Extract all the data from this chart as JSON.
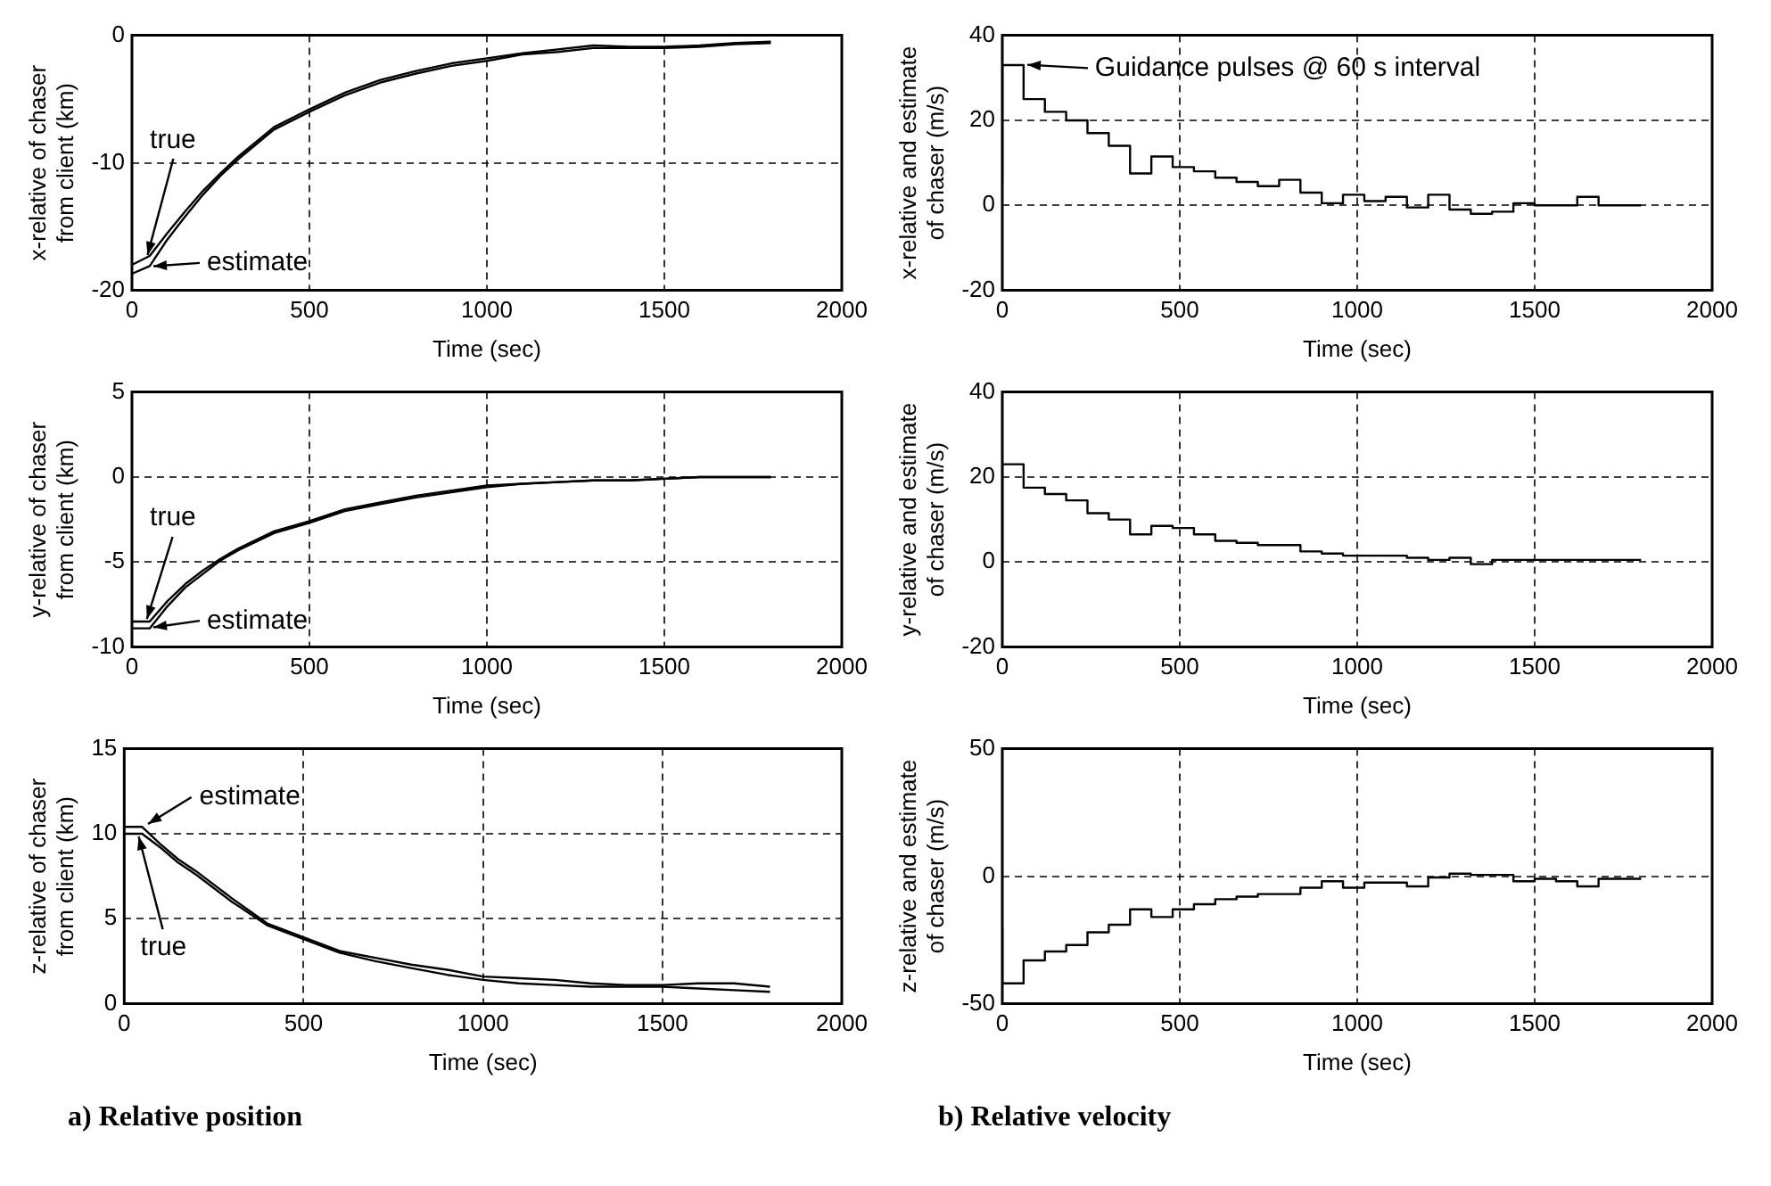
{
  "chart_data": [
    {
      "type": "line",
      "x": [
        0,
        50,
        100,
        150,
        200,
        250,
        300,
        400,
        500,
        600,
        700,
        800,
        900,
        1000,
        1100,
        1200,
        1300,
        1400,
        1500,
        1600,
        1700,
        1800
      ],
      "series": [
        {
          "color": "#000000",
          "values": [
            -18,
            -17.3,
            -15.5,
            -13.8,
            -12.2,
            -10.8,
            -9.5,
            -7.2,
            -5.8,
            -4.5,
            -3.5,
            -2.8,
            -2.2,
            -1.8,
            -1.4,
            -1.1,
            -0.8,
            -0.9,
            -0.9,
            -0.8,
            -0.6,
            -0.5
          ]
        },
        {
          "color": "#000000",
          "values": [
            -18.7,
            -18.1,
            -16,
            -14.2,
            -12.5,
            -11,
            -9.7,
            -7.4,
            -6,
            -4.7,
            -3.7,
            -3,
            -2.4,
            -2,
            -1.5,
            -1.3,
            -1,
            -1,
            -1,
            -0.9,
            -0.7,
            -0.6
          ]
        }
      ],
      "xlim": [
        0,
        2000
      ],
      "xticks": [
        0,
        500,
        1000,
        1500,
        2000
      ],
      "ylim": [
        -20,
        0
      ],
      "yticks": [
        -20,
        -10,
        0
      ],
      "xlabel": "Time (sec)",
      "ylabel": "x-relative of chaser from client (km)",
      "grid": true,
      "marker": "none",
      "annotations": [
        {
          "text": "true",
          "x": 40,
          "y": -17.5
        },
        {
          "text": "estimate",
          "x": 50,
          "y": -18.1
        }
      ]
    },
    {
      "type": "step",
      "x": [
        0,
        60,
        120,
        180,
        240,
        300,
        360,
        420,
        480,
        540,
        600,
        660,
        720,
        780,
        840,
        900,
        960,
        1020,
        1080,
        1140,
        1200,
        1260,
        1320,
        1380,
        1440,
        1500,
        1560,
        1620,
        1680,
        1740,
        1800
      ],
      "series": [
        {
          "color": "#000000",
          "values": [
            5,
            33,
            25,
            22,
            20,
            17,
            14,
            7.5,
            11.5,
            9,
            8,
            6.5,
            5.5,
            4.5,
            6,
            3,
            0.5,
            2.5,
            1,
            2,
            -0.5,
            2.5,
            -1,
            -2,
            -1.5,
            0.5,
            0,
            0,
            2,
            0,
            0
          ]
        }
      ],
      "xlim": [
        0,
        2000
      ],
      "xticks": [
        0,
        500,
        1000,
        1500,
        2000
      ],
      "ylim": [
        -20,
        40
      ],
      "yticks": [
        -20,
        0,
        20,
        40
      ],
      "xlabel": "Time (sec)",
      "ylabel": "x-relative and estimate of chaser (m/s)",
      "grid": true,
      "marker": "none",
      "annotations": [
        {
          "text": "Guidance pulses @ 60 s interval",
          "x": 60,
          "y": 33
        }
      ]
    },
    {
      "type": "line",
      "x": [
        0,
        50,
        100,
        150,
        200,
        250,
        300,
        400,
        500,
        600,
        700,
        800,
        900,
        1000,
        1100,
        1200,
        1300,
        1400,
        1500,
        1600,
        1700,
        1800
      ],
      "series": [
        {
          "color": "#000000",
          "values": [
            -8.5,
            -8.5,
            -7.3,
            -6.3,
            -5.5,
            -4.8,
            -4.2,
            -3.2,
            -2.6,
            -1.9,
            -1.5,
            -1.1,
            -0.8,
            -0.5,
            -0.4,
            -0.3,
            -0.2,
            -0.2,
            -0.1,
            0,
            0,
            0
          ]
        },
        {
          "color": "#000000",
          "values": [
            -8.9,
            -8.9,
            -7.6,
            -6.5,
            -5.7,
            -4.9,
            -4.3,
            -3.3,
            -2.7,
            -2,
            -1.6,
            -1.2,
            -0.9,
            -0.6,
            -0.4,
            -0.3,
            -0.2,
            -0.2,
            -0.1,
            0,
            0,
            0
          ]
        }
      ],
      "xlim": [
        0,
        2000
      ],
      "xticks": [
        0,
        500,
        1000,
        1500,
        2000
      ],
      "ylim": [
        -10,
        5
      ],
      "yticks": [
        -10,
        -5,
        0,
        5
      ],
      "xlabel": "Time (sec)",
      "ylabel": "y-relative of chaser from client (km)",
      "grid": true,
      "marker": "none",
      "annotations": [
        {
          "text": "true",
          "x": 40,
          "y": -8.5
        },
        {
          "text": "estimate",
          "x": 50,
          "y": -8.9
        }
      ]
    },
    {
      "type": "step",
      "x": [
        0,
        60,
        120,
        180,
        240,
        300,
        360,
        420,
        480,
        540,
        600,
        660,
        720,
        780,
        840,
        900,
        960,
        1020,
        1080,
        1140,
        1200,
        1260,
        1320,
        1380,
        1440,
        1500,
        1560,
        1620,
        1680,
        1740,
        1800
      ],
      "series": [
        {
          "color": "#000000",
          "values": [
            0,
            23,
            17.5,
            16,
            14.5,
            11.5,
            10,
            6.5,
            8.5,
            8,
            6.5,
            5,
            4.5,
            4,
            4,
            2.5,
            2,
            1.5,
            1.5,
            1.5,
            1,
            0.5,
            1,
            -0.5,
            0.5,
            0.5,
            0.5,
            0.5,
            0.5,
            0.5,
            0.5
          ]
        }
      ],
      "xlim": [
        0,
        2000
      ],
      "xticks": [
        0,
        500,
        1000,
        1500,
        2000
      ],
      "ylim": [
        -20,
        40
      ],
      "yticks": [
        -20,
        0,
        20,
        40
      ],
      "xlabel": "Time (sec)",
      "ylabel": "y-relative and estimate of chaser (m/s)",
      "grid": true,
      "marker": "none"
    },
    {
      "type": "line",
      "x": [
        0,
        50,
        100,
        150,
        200,
        250,
        300,
        400,
        500,
        600,
        700,
        800,
        900,
        1000,
        1100,
        1200,
        1300,
        1400,
        1500,
        1600,
        1700,
        1800
      ],
      "series": [
        {
          "color": "#000000",
          "values": [
            10,
            10,
            9.2,
            8.3,
            7.6,
            6.8,
            6,
            4.6,
            3.8,
            3,
            2.5,
            2.1,
            1.7,
            1.4,
            1.2,
            1.1,
            1,
            1,
            1,
            0.9,
            0.8,
            0.7
          ]
        },
        {
          "color": "#000000",
          "values": [
            10.4,
            10.4,
            9.4,
            8.5,
            7.8,
            7,
            6.2,
            4.7,
            3.9,
            3.1,
            2.7,
            2.3,
            2,
            1.6,
            1.5,
            1.4,
            1.2,
            1.1,
            1.1,
            1.2,
            1.2,
            1
          ]
        }
      ],
      "xlim": [
        0,
        2000
      ],
      "xticks": [
        0,
        500,
        1000,
        1500,
        2000
      ],
      "ylim": [
        0,
        15
      ],
      "yticks": [
        0,
        5,
        10,
        15
      ],
      "xlabel": "Time (sec)",
      "ylabel": "z-relative of chaser from client (km)",
      "grid": true,
      "marker": "none",
      "annotations": [
        {
          "text": "estimate",
          "x": 60,
          "y": 10.5
        },
        {
          "text": "true",
          "x": 40,
          "y": 10
        },
        "a) Relative position"
      ]
    },
    {
      "type": "step",
      "x": [
        0,
        60,
        120,
        180,
        240,
        300,
        360,
        420,
        480,
        540,
        600,
        660,
        720,
        780,
        840,
        900,
        960,
        1020,
        1080,
        1140,
        1200,
        1260,
        1320,
        1380,
        1440,
        1500,
        1560,
        1620,
        1680,
        1740,
        1800
      ],
      "series": [
        {
          "color": "#000000",
          "values": [
            -20,
            -42,
            -33,
            -29.5,
            -27,
            -22,
            -19,
            -13,
            -16,
            -13,
            -11,
            -9,
            -8,
            -7,
            -7,
            -4.5,
            -2,
            -4.5,
            -2.5,
            -2.5,
            -4,
            -0.5,
            1,
            0.5,
            0.5,
            -2,
            -1,
            -2,
            -4,
            -1,
            -1
          ]
        }
      ],
      "xlim": [
        0,
        2000
      ],
      "xticks": [
        0,
        500,
        1000,
        1500,
        2000
      ],
      "ylim": [
        -50,
        50
      ],
      "yticks": [
        -50,
        0,
        50
      ],
      "xlabel": "Time (sec)",
      "ylabel": "z-relative and estimate of chaser (m/s)",
      "grid": true,
      "marker": "none",
      "annotations": [
        "b) Relative velocity"
      ]
    }
  ]
}
